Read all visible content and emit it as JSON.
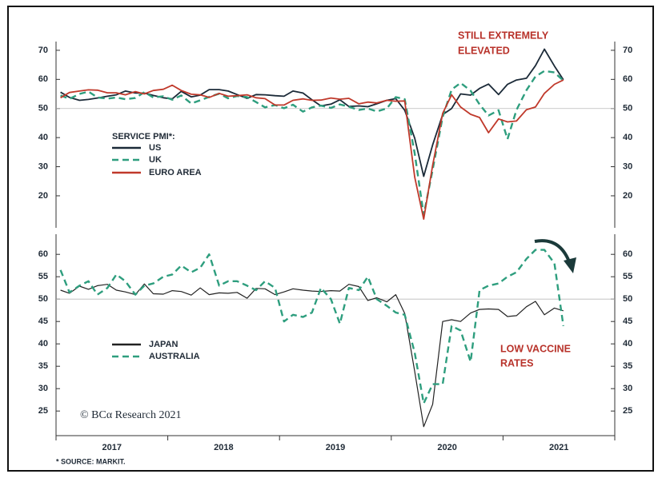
{
  "chart_data": [
    {
      "type": "line",
      "legend_title": "SERVICE PMI*:",
      "annotations": [
        "STILL EXTREMELY",
        "ELEVATED"
      ],
      "x": [
        2017.04,
        2017.12,
        2017.21,
        2017.29,
        2017.37,
        2017.46,
        2017.54,
        2017.62,
        2017.71,
        2017.79,
        2017.87,
        2017.96,
        2018.04,
        2018.12,
        2018.21,
        2018.29,
        2018.37,
        2018.46,
        2018.54,
        2018.62,
        2018.71,
        2018.79,
        2018.87,
        2018.96,
        2019.04,
        2019.12,
        2019.21,
        2019.29,
        2019.37,
        2019.46,
        2019.54,
        2019.62,
        2019.71,
        2019.79,
        2019.87,
        2019.96,
        2020.04,
        2020.12,
        2020.21,
        2020.29,
        2020.37,
        2020.46,
        2020.54,
        2020.62,
        2020.71,
        2020.79,
        2020.87,
        2020.96,
        2021.04,
        2021.12,
        2021.21,
        2021.29,
        2021.37,
        2021.46,
        2021.54
      ],
      "xlim": [
        2017,
        2022
      ],
      "ylim": [
        9,
        73
      ],
      "yticks": [
        20,
        30,
        40,
        50,
        60,
        70
      ],
      "ref_line": 50,
      "series": [
        {
          "name": "US",
          "color": "#1b2a38",
          "dashed": false,
          "values": [
            55.6,
            53.8,
            52.8,
            53.1,
            53.6,
            54.2,
            54.7,
            56.0,
            55.3,
            55.3,
            54.5,
            53.7,
            53.3,
            55.9,
            54.0,
            54.6,
            56.5,
            56.5,
            56.0,
            54.8,
            53.5,
            54.8,
            54.7,
            54.4,
            54.2,
            56.0,
            55.3,
            53.0,
            50.9,
            51.5,
            53.0,
            50.7,
            50.9,
            50.6,
            51.6,
            52.8,
            53.4,
            49.4,
            39.8,
            26.7,
            37.5,
            47.9,
            50.0,
            55.0,
            54.6,
            56.9,
            58.4,
            54.8,
            58.3,
            59.8,
            60.4,
            64.7,
            70.4,
            64.6,
            59.9
          ]
        },
        {
          "name": "UK",
          "color": "#2e9e7e",
          "dashed": true,
          "values": [
            54.5,
            53.3,
            55.0,
            55.8,
            53.8,
            53.4,
            53.8,
            53.2,
            53.6,
            55.6,
            53.8,
            54.2,
            53.0,
            54.5,
            51.7,
            52.8,
            54.0,
            55.1,
            53.5,
            54.3,
            53.9,
            52.2,
            50.4,
            51.2,
            50.1,
            51.3,
            48.9,
            50.4,
            51.0,
            50.2,
            51.4,
            50.6,
            49.5,
            50.0,
            49.0,
            50.0,
            53.9,
            53.2,
            34.5,
            13.4,
            29.0,
            47.1,
            56.5,
            58.8,
            56.1,
            51.4,
            47.6,
            49.4,
            39.5,
            49.5,
            56.3,
            61.0,
            62.9,
            62.4,
            59.6
          ]
        },
        {
          "name": "EURO AREA",
          "color": "#c0392b",
          "dashed": false,
          "values": [
            53.7,
            55.5,
            56.0,
            56.4,
            56.3,
            55.4,
            55.4,
            54.7,
            55.8,
            55.0,
            56.2,
            56.6,
            58.0,
            56.2,
            54.9,
            54.7,
            53.8,
            55.2,
            54.2,
            54.4,
            54.7,
            53.7,
            53.4,
            51.2,
            51.2,
            52.8,
            53.3,
            52.8,
            52.9,
            53.6,
            53.2,
            53.5,
            51.6,
            52.2,
            51.9,
            52.8,
            52.5,
            52.6,
            26.4,
            12.0,
            30.5,
            48.3,
            54.7,
            50.5,
            48.0,
            46.9,
            41.7,
            46.4,
            45.4,
            45.7,
            49.6,
            50.5,
            55.2,
            58.3,
            59.8
          ]
        }
      ]
    },
    {
      "type": "line",
      "annotations": [
        "LOW VACCINE",
        "RATES"
      ],
      "x": [
        2017.04,
        2017.12,
        2017.21,
        2017.29,
        2017.37,
        2017.46,
        2017.54,
        2017.62,
        2017.71,
        2017.79,
        2017.87,
        2017.96,
        2018.04,
        2018.12,
        2018.21,
        2018.29,
        2018.37,
        2018.46,
        2018.54,
        2018.62,
        2018.71,
        2018.79,
        2018.87,
        2018.96,
        2019.04,
        2019.12,
        2019.21,
        2019.29,
        2019.37,
        2019.46,
        2019.54,
        2019.62,
        2019.71,
        2019.79,
        2019.87,
        2019.96,
        2020.04,
        2020.12,
        2020.21,
        2020.29,
        2020.37,
        2020.46,
        2020.54,
        2020.62,
        2020.71,
        2020.79,
        2020.87,
        2020.96,
        2021.04,
        2021.12,
        2021.21,
        2021.29,
        2021.37,
        2021.46,
        2021.54
      ],
      "xlim": [
        2017,
        2022
      ],
      "xticks": [
        {
          "value": 2017.5,
          "label": "2017"
        },
        {
          "value": 2018.5,
          "label": "2018"
        },
        {
          "value": 2019.5,
          "label": "2019"
        },
        {
          "value": 2020.5,
          "label": "2020"
        },
        {
          "value": 2021.5,
          "label": "2021"
        }
      ],
      "xminor_ticks": [
        2017,
        2018,
        2019,
        2020,
        2021,
        2022
      ],
      "ylim": [
        19.5,
        64.5
      ],
      "yticks": [
        25,
        30,
        35,
        40,
        45,
        50,
        55,
        60
      ],
      "ref_line": 50,
      "series": [
        {
          "name": "JAPAN",
          "color": "#222222",
          "dashed": false,
          "values": [
            52.0,
            51.3,
            52.9,
            52.2,
            53.0,
            53.3,
            52.0,
            51.6,
            51.0,
            53.4,
            51.2,
            51.1,
            51.9,
            51.7,
            50.9,
            52.5,
            51.0,
            51.4,
            51.3,
            51.5,
            50.2,
            52.4,
            52.3,
            51.0,
            51.6,
            52.3,
            52.0,
            51.8,
            51.7,
            51.9,
            51.8,
            53.3,
            52.8,
            49.7,
            50.3,
            49.4,
            51.0,
            46.8,
            33.8,
            21.5,
            26.5,
            45.0,
            45.4,
            45.0,
            46.9,
            47.7,
            47.8,
            47.7,
            46.1,
            46.3,
            48.3,
            49.5,
            46.5,
            48.0,
            47.4
          ]
        },
        {
          "name": "AUSTRALIA",
          "color": "#2e9e7e",
          "dashed": true,
          "values": [
            56.5,
            51.5,
            53,
            54,
            51,
            52.5,
            55.5,
            54,
            51,
            53,
            53.5,
            55,
            55.5,
            57.5,
            56,
            57,
            60,
            53,
            54,
            54,
            53,
            52,
            54,
            52.5,
            45,
            46.5,
            46,
            47,
            52.5,
            50,
            44.5,
            52.5,
            52,
            55,
            50,
            48.5,
            47,
            46.5,
            38,
            26.7,
            31,
            31,
            44,
            43,
            36,
            52,
            53,
            53.5,
            55,
            56,
            59,
            61,
            61,
            58,
            44
          ]
        }
      ]
    }
  ],
  "credit": "© BCα Research 2021",
  "footnote": "* SOURCE: MARKIT."
}
